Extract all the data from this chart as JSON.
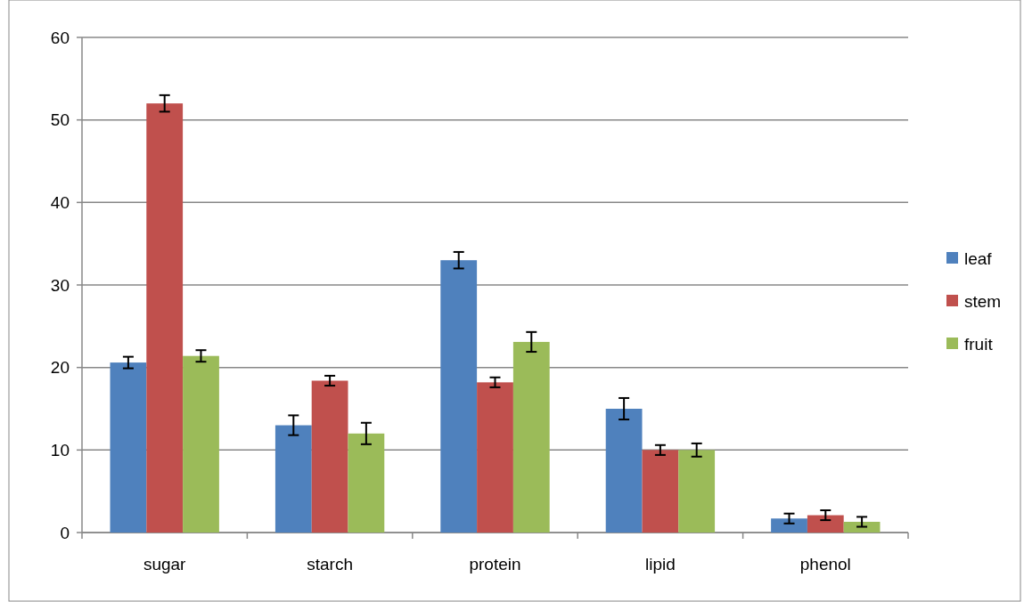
{
  "chart_data": {
    "type": "bar",
    "categories": [
      "sugar",
      "starch",
      "protein",
      "lipid",
      "phenol"
    ],
    "series": [
      {
        "name": "leaf",
        "color": "#4f81bd",
        "values": [
          20.6,
          13.0,
          33.0,
          15.0,
          1.7
        ],
        "errors": [
          0.7,
          1.2,
          1.0,
          1.3,
          0.6
        ]
      },
      {
        "name": "stem",
        "color": "#c0504d",
        "values": [
          52.0,
          18.4,
          18.2,
          10.0,
          2.1
        ],
        "errors": [
          1.0,
          0.6,
          0.6,
          0.6,
          0.6
        ]
      },
      {
        "name": "fruit",
        "color": "#9bbb59",
        "values": [
          21.4,
          12.0,
          23.1,
          10.0,
          1.3
        ],
        "errors": [
          0.7,
          1.3,
          1.2,
          0.8,
          0.6
        ]
      }
    ],
    "ylim": [
      0,
      60
    ],
    "yticks": [
      0,
      10,
      20,
      30,
      40,
      50,
      60
    ],
    "grid": "y",
    "legend": "right"
  }
}
